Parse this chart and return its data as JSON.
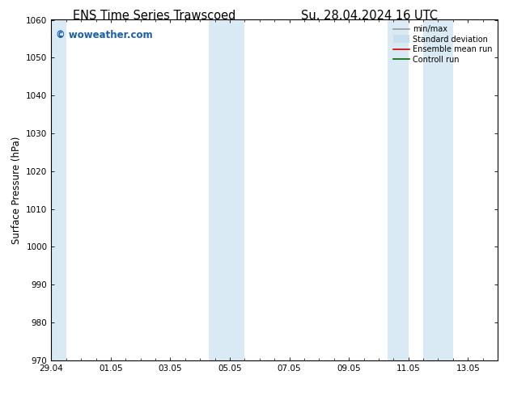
{
  "title_left": "ENS Time Series Trawscoed",
  "title_right": "Su. 28.04.2024 16 UTC",
  "ylabel": "Surface Pressure (hPa)",
  "ylim": [
    970,
    1060
  ],
  "yticks": [
    970,
    980,
    990,
    1000,
    1010,
    1020,
    1030,
    1040,
    1050,
    1060
  ],
  "xtick_labels": [
    "29.04",
    "01.05",
    "03.05",
    "05.05",
    "07.05",
    "09.05",
    "11.05",
    "13.05"
  ],
  "xtick_positions": [
    0,
    2,
    4,
    6,
    8,
    10,
    12,
    14
  ],
  "xlim": [
    0,
    15
  ],
  "shaded_bands": [
    {
      "x_start": 0.0,
      "x_end": 0.5,
      "color": "#d9eaf5"
    },
    {
      "x_start": 5.3,
      "x_end": 6.5,
      "color": "#d9eaf5"
    },
    {
      "x_start": 11.3,
      "x_end": 12.0,
      "color": "#d9eaf5"
    },
    {
      "x_start": 12.5,
      "x_end": 13.5,
      "color": "#d9eaf5"
    }
  ],
  "watermark_text": "© woweather.com",
  "watermark_color": "#1a5fa8",
  "legend_items": [
    {
      "label": "min/max",
      "color": "#999999",
      "lw": 1.2
    },
    {
      "label": "Standard deviation",
      "color": "#c8dded",
      "lw": 7
    },
    {
      "label": "Ensemble mean run",
      "color": "#cc0000",
      "lw": 1.2
    },
    {
      "label": "Controll run",
      "color": "#006600",
      "lw": 1.2
    }
  ],
  "bg_color": "#ffffff",
  "title_fontsize": 10.5,
  "tick_fontsize": 7.5,
  "ylabel_fontsize": 8.5
}
